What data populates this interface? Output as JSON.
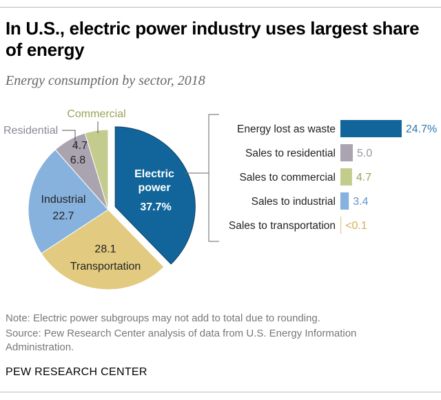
{
  "title": "In U.S., electric power industry uses largest share of energy",
  "subtitle": "Energy consumption by sector, 2018",
  "chart_data": [
    {
      "type": "pie",
      "slices": [
        {
          "label": "Electric power",
          "value": 37.7,
          "display": "37.7%",
          "color": "#11659b",
          "exploded": true
        },
        {
          "label": "Transportation",
          "value": 28.1,
          "display": "28.1",
          "color": "#e2cb80"
        },
        {
          "label": "Industrial",
          "value": 22.7,
          "display": "22.7",
          "color": "#87b2de"
        },
        {
          "label": "Residential",
          "value": 6.8,
          "display": "6.8",
          "color": "#aaa4b0"
        },
        {
          "label": "Commercial",
          "value": 4.7,
          "display": "4.7",
          "color": "#c3cc8d"
        }
      ],
      "electric_label_lines": [
        "Electric",
        "power"
      ]
    },
    {
      "type": "bar",
      "orientation": "horizontal",
      "categories": [
        "Energy lost as waste",
        "Sales to residential",
        "Sales to commercial",
        "Sales to industrial",
        "Sales to transportation"
      ],
      "values": [
        24.7,
        5.0,
        4.7,
        3.4,
        0.05
      ],
      "labels": [
        "24.7%",
        "5.0",
        "4.7",
        "3.4",
        "<0.1"
      ],
      "colors": [
        "#11659b",
        "#aaa4b0",
        "#c3cc8d",
        "#87b2de",
        "#e2cb80"
      ],
      "label_colors": [
        "#2e78b0",
        "#9a94a0",
        "#9aa35a",
        "#5f93cf",
        "#d6b04d"
      ]
    }
  ],
  "notes": {
    "note": "Note: Electric power subgroups may not add to total due to rounding.",
    "source": "Source: Pew Research Center analysis of data from U.S. Energy Information Administration."
  },
  "footer": "PEW RESEARCH CENTER"
}
